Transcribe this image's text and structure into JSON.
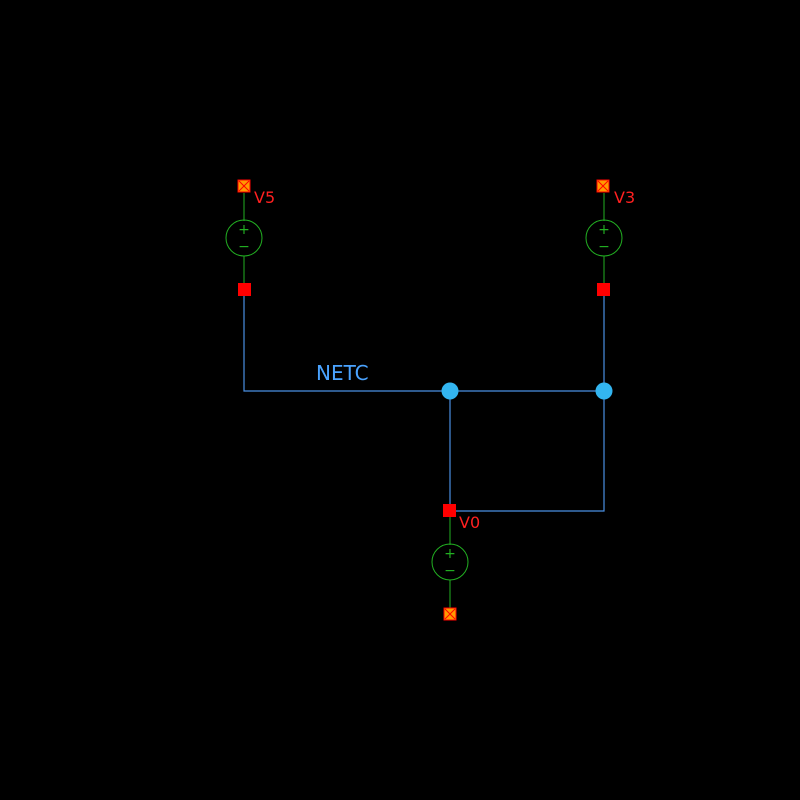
{
  "schematic": {
    "net_label": "NETC",
    "sources": [
      {
        "name": "V5",
        "plus": "+",
        "minus": "−"
      },
      {
        "name": "V3",
        "plus": "+",
        "minus": "−"
      },
      {
        "name": "V0",
        "plus": "+",
        "minus": "−"
      }
    ],
    "colors": {
      "background": "#000000",
      "wire": "#4a90e2",
      "junction": "#33b5f0",
      "component": "#22b022",
      "pin": "#ff0000",
      "ground_fill": "#ff9a00",
      "label_text": "#ff2020",
      "net_text": "#4aa3ff"
    }
  }
}
